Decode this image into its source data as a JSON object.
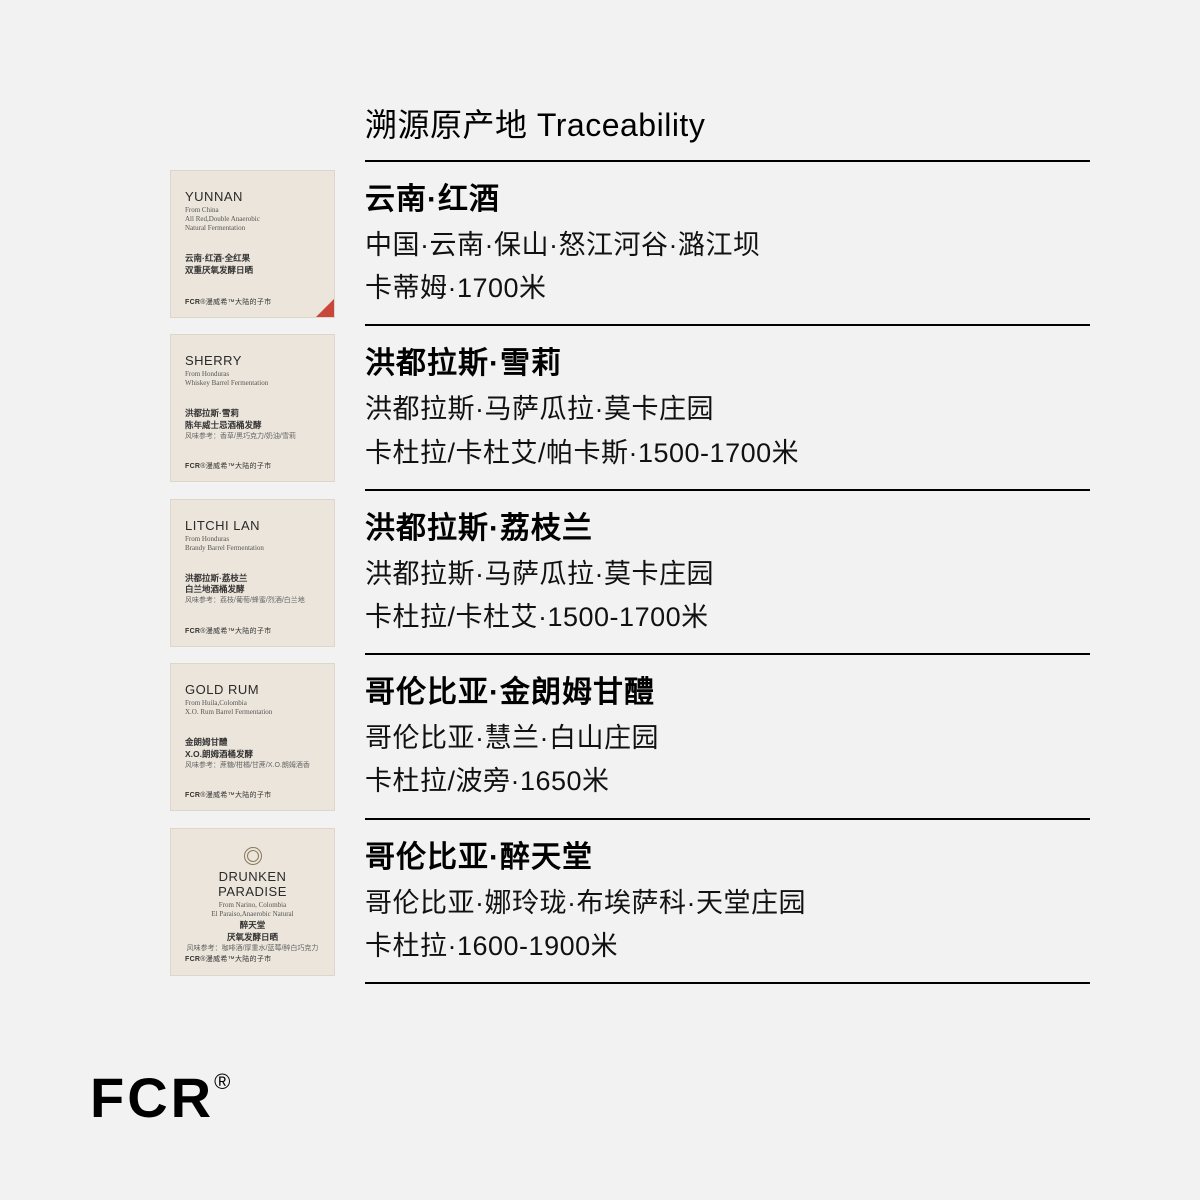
{
  "header": "溯源原产地 Traceability",
  "brandFooter": "FCR",
  "cardBrand": "FCR®漫威希™大陆的子市",
  "products": [
    {
      "card": {
        "enName": "YUNNAN",
        "enSub1": "From China",
        "enSub2": "All Red,Double Anaerobic",
        "enSub3": "Natural Fermentation",
        "cnName": "云南·红酒·全红果",
        "cnProc": "双重厌氧发酵日晒",
        "cnSub": "",
        "corner": true,
        "emblem": false,
        "centered": false
      },
      "title": "云南·红酒",
      "line1": "中国·云南·保山·怒江河谷·潞江坝",
      "line2": "卡蒂姆·1700米"
    },
    {
      "card": {
        "enName": "SHERRY",
        "enSub1": "From Honduras",
        "enSub2": "Whiskey Barrel Fermentation",
        "enSub3": "",
        "cnName": "洪都拉斯·雪莉",
        "cnProc": "陈年威士忌酒桶发酵",
        "cnSub": "风味参考：香草/黑巧克力/奶油/雪莉",
        "corner": false,
        "emblem": false,
        "centered": false
      },
      "title": "洪都拉斯·雪莉",
      "line1": "洪都拉斯·马萨瓜拉·莫卡庄园",
      "line2": "卡杜拉/卡杜艾/帕卡斯·1500-1700米"
    },
    {
      "card": {
        "enName": "LITCHI LAN",
        "enSub1": "From Honduras",
        "enSub2": "Brandy Barrel Fermentation",
        "enSub3": "",
        "cnName": "洪都拉斯·荔枝兰",
        "cnProc": "白兰地酒桶发酵",
        "cnSub": "风味参考：荔枝/葡萄/蜂蜜/烈酒/白兰地",
        "corner": false,
        "emblem": false,
        "centered": false
      },
      "title": "洪都拉斯·荔枝兰",
      "line1": "洪都拉斯·马萨瓜拉·莫卡庄园",
      "line2": "卡杜拉/卡杜艾·1500-1700米"
    },
    {
      "card": {
        "enName": "GOLD RUM",
        "enSub1": "From Huila,Colombia",
        "enSub2": "X.O. Rum Barrel Fermentation",
        "enSub3": "",
        "cnName": "金朗姆甘醴",
        "cnProc": "X.O.朗姆酒桶发酵",
        "cnSub": "风味参考：蔗糖/柑橘/甘蔗/X.O.朗姆酒香",
        "corner": false,
        "emblem": false,
        "centered": false
      },
      "title": "哥伦比亚·金朗姆甘醴",
      "line1": "哥伦比亚·慧兰·白山庄园",
      "line2": "卡杜拉/波旁·1650米"
    },
    {
      "card": {
        "enName": "DRUNKEN PARADISE",
        "enSub1": "From Narino, Colombia",
        "enSub2": "El Paraiso,Anaerobic Natural",
        "enSub3": "",
        "cnName": "醉天堂",
        "cnProc": "厌氧发酵日晒",
        "cnSub": "风味参考：咖啡酒/厚重水/蓝莓/醉白巧克力",
        "corner": false,
        "emblem": true,
        "centered": true
      },
      "title": "哥伦比亚·醉天堂",
      "line1": "哥伦比亚·娜玲珑·布埃萨科·天堂庄园",
      "line2": "卡杜拉·1600-1900米"
    }
  ]
}
